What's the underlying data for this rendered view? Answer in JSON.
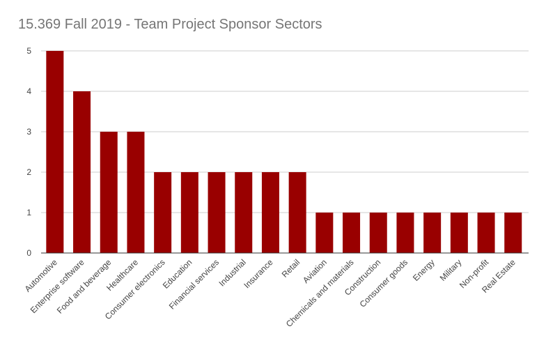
{
  "chart_data": {
    "type": "bar",
    "title": "15.369 Fall 2019 - Team Project Sponsor Sectors",
    "xlabel": "",
    "ylabel": "",
    "categories": [
      "Automotive",
      "Enterprise software",
      "Food and beverage",
      "Healthcare",
      "Consumer electronics",
      "Education",
      "Financial services",
      "Industrial",
      "Insurance",
      "Retail",
      "Aviation",
      "Chemicals and materials",
      "Construction",
      "Consumer goods",
      "Energy",
      "Military",
      "Non-profit",
      "Real Estate"
    ],
    "values": [
      5,
      4,
      3,
      3,
      2,
      2,
      2,
      2,
      2,
      2,
      1,
      1,
      1,
      1,
      1,
      1,
      1,
      1
    ],
    "ylim": [
      0,
      5
    ],
    "yticks": [
      0,
      1,
      2,
      3,
      4,
      5
    ],
    "grid": true,
    "legend": "none",
    "bar_color": "#990000",
    "grid_color": "#cccccc",
    "baseline_color": "#333333"
  }
}
